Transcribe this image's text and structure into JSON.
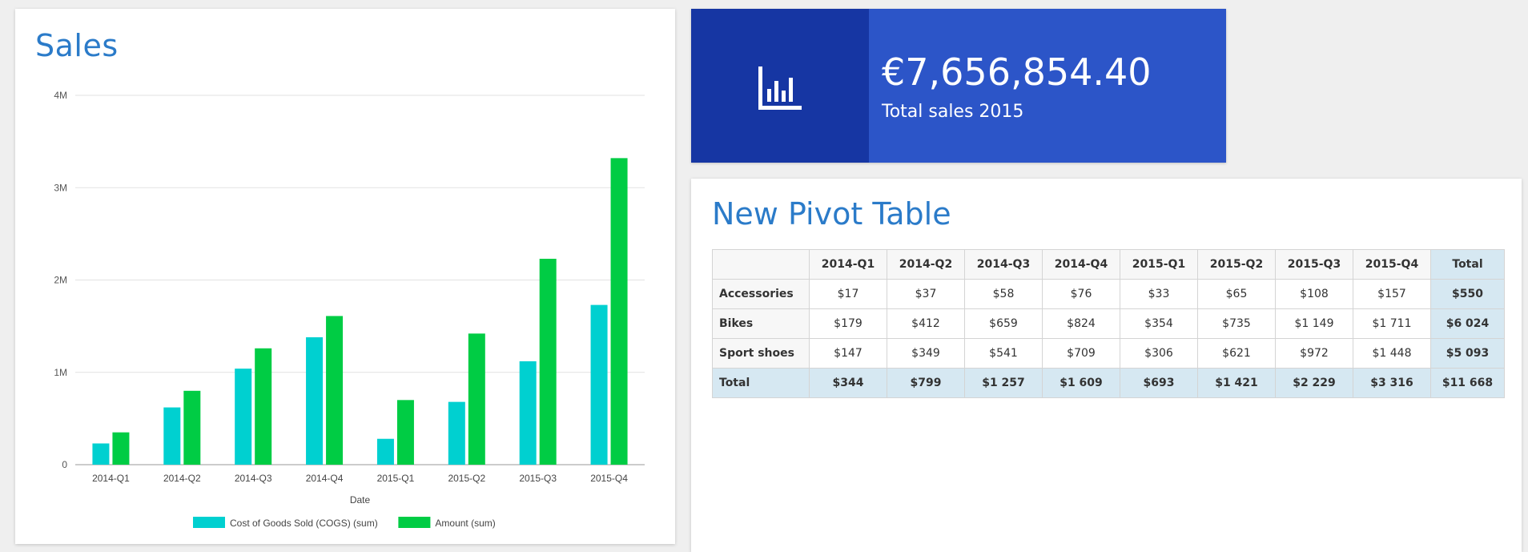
{
  "sales": {
    "title": "Sales",
    "chart_data": {
      "type": "bar",
      "xlabel": "Date",
      "ylabel": "",
      "ylim": [
        0,
        4000000
      ],
      "yticks": [
        "0",
        "1M",
        "2M",
        "3M",
        "4M"
      ],
      "categories": [
        "2014-Q1",
        "2014-Q2",
        "2014-Q3",
        "2014-Q4",
        "2015-Q1",
        "2015-Q2",
        "2015-Q3",
        "2015-Q4"
      ],
      "series": [
        {
          "name": "Cost of Goods Sold (COGS) (sum)",
          "color": "#00d0d0",
          "values": [
            230000,
            620000,
            1040000,
            1380000,
            280000,
            680000,
            1120000,
            1730000
          ]
        },
        {
          "name": "Amount (sum)",
          "color": "#00cc44",
          "values": [
            350000,
            800000,
            1260000,
            1610000,
            700000,
            1420000,
            2230000,
            3320000
          ]
        }
      ],
      "grid": true,
      "legend": "bottom"
    }
  },
  "kpi": {
    "value": "€7,656,854.40",
    "label": "Total sales 2015",
    "icon": "bar-chart-icon"
  },
  "pivot": {
    "title": "New Pivot Table",
    "columns": [
      "2014-Q1",
      "2014-Q2",
      "2014-Q3",
      "2014-Q4",
      "2015-Q1",
      "2015-Q2",
      "2015-Q3",
      "2015-Q4",
      "Total"
    ],
    "rows": [
      {
        "label": "Accessories",
        "values": [
          "$17",
          "$37",
          "$58",
          "$76",
          "$33",
          "$65",
          "$108",
          "$157",
          "$550"
        ]
      },
      {
        "label": "Bikes",
        "values": [
          "$179",
          "$412",
          "$659",
          "$824",
          "$354",
          "$735",
          "$1 149",
          "$1 711",
          "$6 024"
        ]
      },
      {
        "label": "Sport shoes",
        "values": [
          "$147",
          "$349",
          "$541",
          "$709",
          "$306",
          "$621",
          "$972",
          "$1 448",
          "$5 093"
        ]
      }
    ],
    "total": {
      "label": "Total",
      "values": [
        "$344",
        "$799",
        "$1 257",
        "$1 609",
        "$693",
        "$1 421",
        "$2 229",
        "$3 316",
        "$11 668"
      ]
    }
  }
}
